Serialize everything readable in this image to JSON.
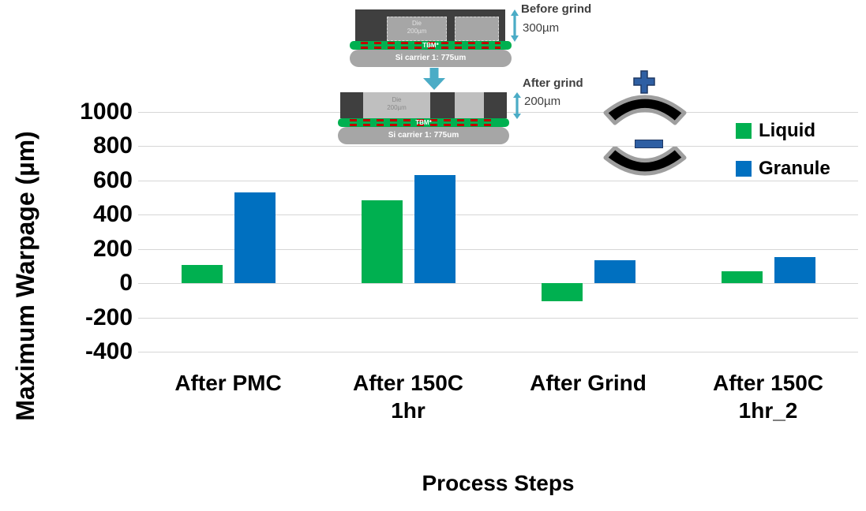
{
  "chart_data": {
    "type": "bar",
    "title": "",
    "categories": [
      "After PMC",
      "After 150C\n1hr",
      "After Grind",
      "After 150C\n1hr_2"
    ],
    "series": [
      {
        "name": "Liquid",
        "color": "#00B050",
        "values": [
          105,
          485,
          -105,
          70
        ]
      },
      {
        "name": "Granule",
        "color": "#0070C0",
        "values": [
          530,
          630,
          135,
          155
        ]
      }
    ],
    "xlabel": "Process Steps",
    "ylabel": "Maximum Warpage (µm)",
    "ylim": [
      -400,
      1000
    ],
    "yticks": [
      1000,
      800,
      600,
      400,
      200,
      0,
      -200,
      -400
    ],
    "grid": true,
    "legend_position": "right"
  },
  "inset": {
    "before": {
      "label": "Before grind",
      "thickness": "300µm",
      "die_label": "Die",
      "die_thickness": "200µm",
      "tbm_label": "TBM*",
      "carrier_label": "Si carrier 1: 775um"
    },
    "after": {
      "label": "After grind",
      "thickness": "200µm",
      "die_label": "Die",
      "die_thickness": "200µm",
      "tbm_label": "TBM*",
      "carrier_label": "Si carrier 1: 775um"
    }
  },
  "colors": {
    "liquid": "#00B050",
    "granule": "#0070C0",
    "gridline": "#d6d6d6",
    "inset_arrow": "#4BACC6",
    "warp_sign": "#2e5fa3"
  }
}
